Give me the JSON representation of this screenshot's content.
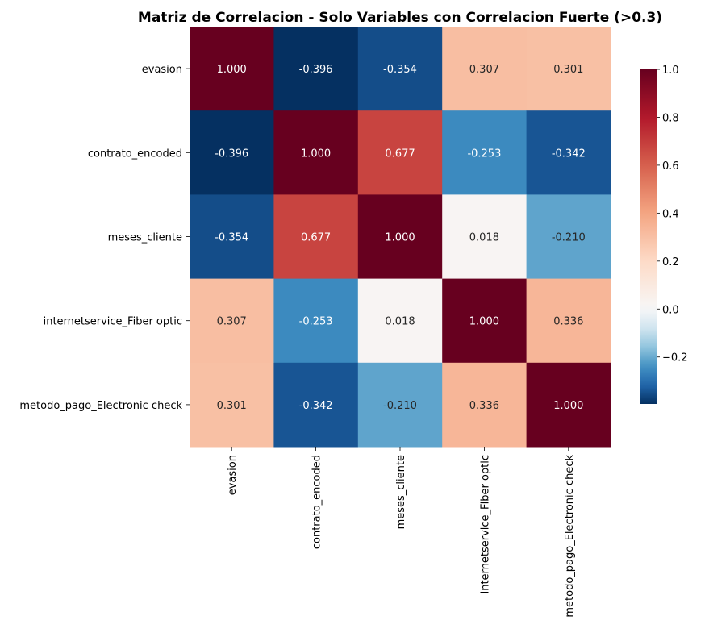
{
  "chart_data": {
    "type": "heatmap",
    "title": "Matriz de Correlacion - Solo Variables con Correlacion Fuerte (>0.3)",
    "row_labels": [
      "evasion",
      "contrato_encoded",
      "meses_cliente",
      "internetservice_Fiber optic",
      "metodo_pago_Electronic check"
    ],
    "col_labels": [
      "evasion",
      "contrato_encoded",
      "meses_cliente",
      "internetservice_Fiber optic",
      "metodo_pago_Electronic check"
    ],
    "values": [
      [
        1.0,
        -0.396,
        -0.354,
        0.307,
        0.301
      ],
      [
        -0.396,
        1.0,
        0.677,
        -0.253,
        -0.342
      ],
      [
        -0.354,
        0.677,
        1.0,
        0.018,
        -0.21
      ],
      [
        0.307,
        -0.253,
        0.018,
        1.0,
        0.336
      ],
      [
        0.301,
        -0.342,
        -0.21,
        0.336,
        1.0
      ]
    ],
    "cell_labels": [
      [
        "1.000",
        "-0.396",
        "-0.354",
        "0.307",
        "0.301"
      ],
      [
        "-0.396",
        "1.000",
        "0.677",
        "-0.253",
        "-0.342"
      ],
      [
        "-0.354",
        "0.677",
        "1.000",
        "0.018",
        "-0.210"
      ],
      [
        "0.307",
        "-0.253",
        "0.018",
        "1.000",
        "0.336"
      ],
      [
        "0.301",
        "-0.342",
        "-0.210",
        "0.336",
        "1.000"
      ]
    ],
    "colormap": "RdBu_r",
    "colorbar": {
      "range": [
        -0.396,
        1.0
      ],
      "ticks": [
        -0.2,
        0.0,
        0.2,
        0.4,
        0.6,
        0.8,
        1.0
      ],
      "tick_labels": [
        "−0.2",
        "0.0",
        "0.2",
        "0.4",
        "0.6",
        "0.8",
        "1.0"
      ],
      "placement": "right"
    }
  }
}
